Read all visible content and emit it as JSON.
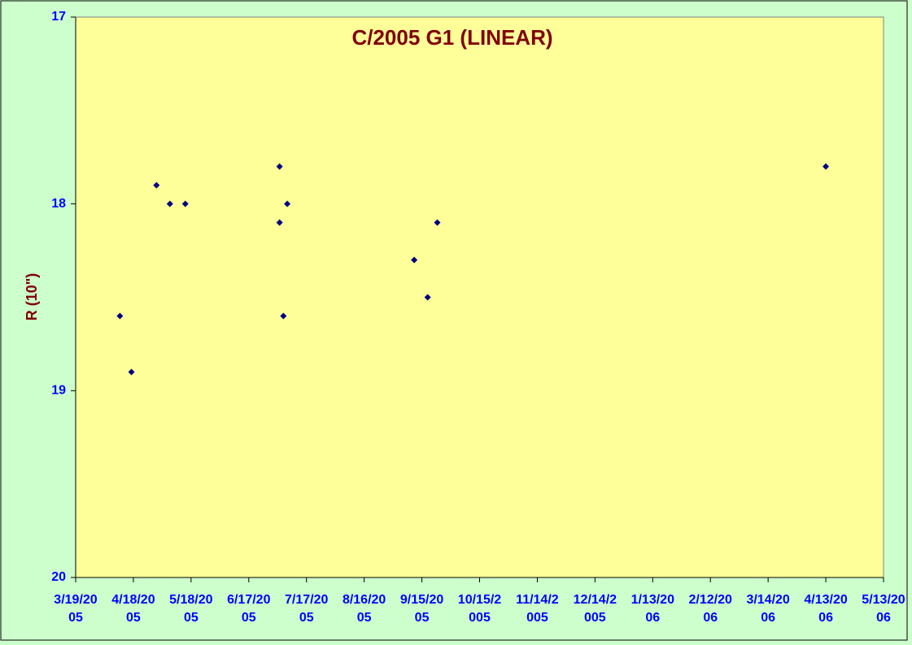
{
  "chart_data": {
    "type": "scatter",
    "title": "C/2005 G1 (LINEAR)",
    "y_label": "R (10\")",
    "x": [
      "2005-04-11",
      "2005-04-17",
      "2005-04-30",
      "2005-05-07",
      "2005-05-15",
      "2005-07-03",
      "2005-07-03",
      "2005-07-05",
      "2005-07-07",
      "2005-09-11",
      "2005-09-18",
      "2005-09-23",
      "2006-04-13"
    ],
    "values": [
      18.6,
      18.9,
      17.9,
      18.0,
      18.0,
      17.8,
      18.1,
      18.6,
      18.0,
      18.3,
      18.5,
      18.1,
      17.8
    ],
    "color": "#000080",
    "xlim": [
      "2005-03-19",
      "2006-05-13"
    ],
    "xticks": [
      {
        "value": "2005-03-19",
        "label": "3/19/2005"
      },
      {
        "value": "2005-04-18",
        "label": "4/18/2005"
      },
      {
        "value": "2005-05-18",
        "label": "5/18/2005"
      },
      {
        "value": "2005-06-17",
        "label": "6/17/2005"
      },
      {
        "value": "2005-07-17",
        "label": "7/17/2005"
      },
      {
        "value": "2005-08-16",
        "label": "8/16/2005"
      },
      {
        "value": "2005-09-15",
        "label": "9/15/2005"
      },
      {
        "value": "2005-10-15",
        "label": "10/15/2005"
      },
      {
        "value": "2005-11-14",
        "label": "11/14/2005"
      },
      {
        "value": "2005-12-14",
        "label": "12/14/2005"
      },
      {
        "value": "2006-01-13",
        "label": "1/13/2006"
      },
      {
        "value": "2006-02-12",
        "label": "2/12/2006"
      },
      {
        "value": "2006-03-14",
        "label": "3/14/2006"
      },
      {
        "value": "2006-04-13",
        "label": "4/13/2006"
      },
      {
        "value": "2006-05-13",
        "label": "5/13/2006"
      }
    ],
    "ylim": [
      20,
      17
    ],
    "yticks": [
      17,
      18,
      19,
      20
    ],
    "grid": false
  }
}
